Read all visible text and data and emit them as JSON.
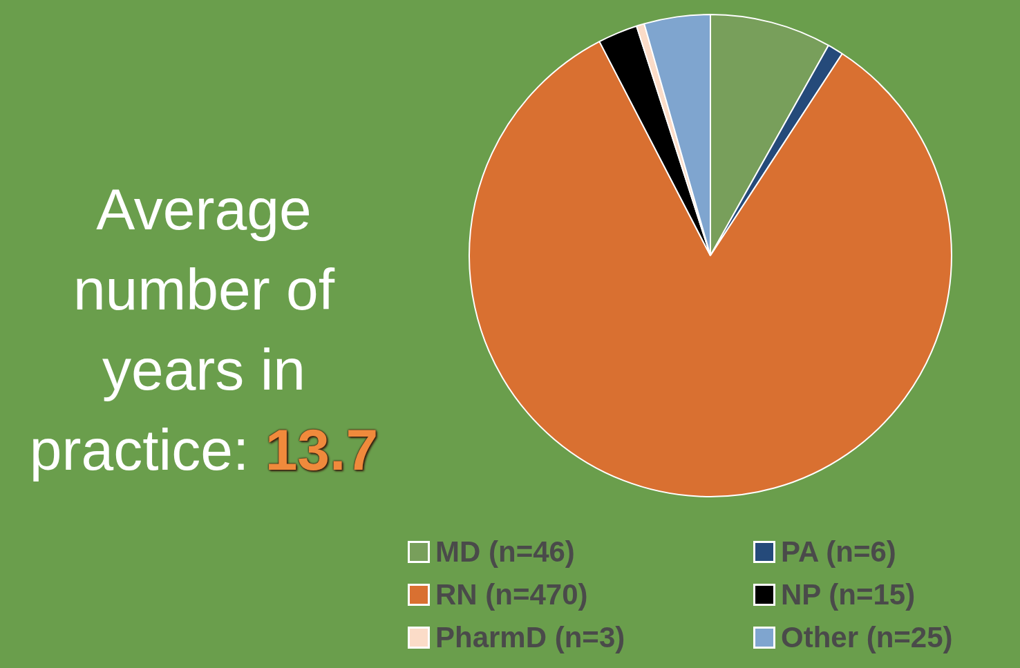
{
  "chart_data": {
    "type": "pie",
    "categories": [
      "MD (n=46)",
      "PA (n=6)",
      "RN (n=470)",
      "NP (n=15)",
      "PharmD (n=3)",
      "Other (n=25)"
    ],
    "values": [
      46,
      6,
      470,
      15,
      3,
      25
    ],
    "colors": [
      "#789f5b",
      "#254a7a",
      "#d97031",
      "#000000",
      "#fbdcc8",
      "#7fa5cf"
    ],
    "legend": "bottom",
    "annotations": [
      "Average number of years in practice:",
      "13.7"
    ]
  }
}
